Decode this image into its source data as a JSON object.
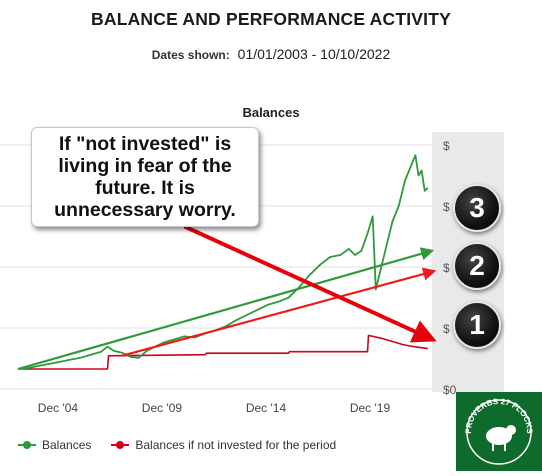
{
  "header": {
    "title": "BALANCE AND PERFORMANCE ACTIVITY",
    "dates_label": "Dates shown:",
    "dates_value": "01/01/2003 - 10/10/2022"
  },
  "chart_data": {
    "type": "line",
    "title": "Balances",
    "x_ticks": [
      "Dec '04",
      "Dec '09",
      "Dec '14",
      "Dec '19"
    ],
    "y_ticks": [
      "$",
      "$",
      "$",
      "$",
      "$0"
    ],
    "grid": true,
    "legend_position": "bottom-left",
    "series": [
      {
        "name": "Balances",
        "color": "#2e9a3a",
        "values": [
          [
            2003.0,
            0.0
          ],
          [
            2003.5,
            0.01
          ],
          [
            2004.0,
            0.03
          ],
          [
            2004.5,
            0.05
          ],
          [
            2005.0,
            0.07
          ],
          [
            2005.5,
            0.09
          ],
          [
            2006.0,
            0.11
          ],
          [
            2006.5,
            0.14
          ],
          [
            2007.0,
            0.17
          ],
          [
            2007.3,
            0.22
          ],
          [
            2007.6,
            0.18
          ],
          [
            2008.0,
            0.16
          ],
          [
            2008.4,
            0.12
          ],
          [
            2008.8,
            0.11
          ],
          [
            2009.2,
            0.18
          ],
          [
            2009.6,
            0.22
          ],
          [
            2010.0,
            0.26
          ],
          [
            2010.5,
            0.29
          ],
          [
            2011.0,
            0.32
          ],
          [
            2011.5,
            0.31
          ],
          [
            2012.0,
            0.35
          ],
          [
            2012.5,
            0.38
          ],
          [
            2013.0,
            0.42
          ],
          [
            2013.5,
            0.48
          ],
          [
            2014.0,
            0.53
          ],
          [
            2014.5,
            0.58
          ],
          [
            2015.0,
            0.63
          ],
          [
            2015.5,
            0.66
          ],
          [
            2016.0,
            0.7
          ],
          [
            2016.5,
            0.8
          ],
          [
            2017.0,
            0.92
          ],
          [
            2017.5,
            1.02
          ],
          [
            2018.0,
            1.1
          ],
          [
            2018.5,
            1.12
          ],
          [
            2018.9,
            1.18
          ],
          [
            2019.2,
            1.12
          ],
          [
            2019.5,
            1.16
          ],
          [
            2019.8,
            1.33
          ],
          [
            2020.05,
            1.5
          ],
          [
            2020.2,
            0.78
          ],
          [
            2020.4,
            0.95
          ],
          [
            2020.7,
            1.2
          ],
          [
            2021.0,
            1.45
          ],
          [
            2021.3,
            1.6
          ],
          [
            2021.6,
            1.85
          ],
          [
            2021.9,
            2.0
          ],
          [
            2022.1,
            2.1
          ],
          [
            2022.25,
            1.9
          ],
          [
            2022.4,
            1.95
          ],
          [
            2022.55,
            1.75
          ],
          [
            2022.7,
            1.78
          ]
        ]
      },
      {
        "name": "Balances if not invested for the period",
        "color": "#d0021b",
        "values": [
          [
            2003.0,
            0.0
          ],
          [
            2007.3,
            0.0
          ],
          [
            2007.35,
            0.13
          ],
          [
            2012.0,
            0.14
          ],
          [
            2012.05,
            0.155
          ],
          [
            2016.0,
            0.155
          ],
          [
            2016.05,
            0.17
          ],
          [
            2019.8,
            0.17
          ],
          [
            2019.85,
            0.33
          ],
          [
            2020.5,
            0.3
          ],
          [
            2021.0,
            0.27
          ],
          [
            2021.5,
            0.24
          ],
          [
            2022.0,
            0.22
          ],
          [
            2022.7,
            0.2
          ]
        ]
      }
    ],
    "annotations": [
      {
        "type": "arrow",
        "color": "#2e9a3a",
        "from": [
          2003.0,
          0.0
        ],
        "to": [
          2022.7,
          1.15
        ]
      },
      {
        "type": "arrow",
        "color": "#f11a1a",
        "from": [
          2008.0,
          0.13
        ],
        "to": [
          2022.8,
          0.95
        ]
      },
      {
        "type": "arrow",
        "color": "#e8000b",
        "from": [
          2011.0,
          1.4
        ],
        "to": [
          2022.6,
          0.32
        ]
      }
    ]
  },
  "callout": {
    "lines": [
      "If \"not invested\" is",
      "living in fear of the",
      "future. It is",
      "unnecessary worry."
    ]
  },
  "badges": [
    "3",
    "2",
    "1"
  ],
  "colors": {
    "balances": "#2e9a3a",
    "not_invested": "#d0021b",
    "axis_panel": "#e9e9e9",
    "logo_bg": "#0f6b2c"
  },
  "logo": {
    "text": "PROVERBS 27 FLOCKS"
  }
}
